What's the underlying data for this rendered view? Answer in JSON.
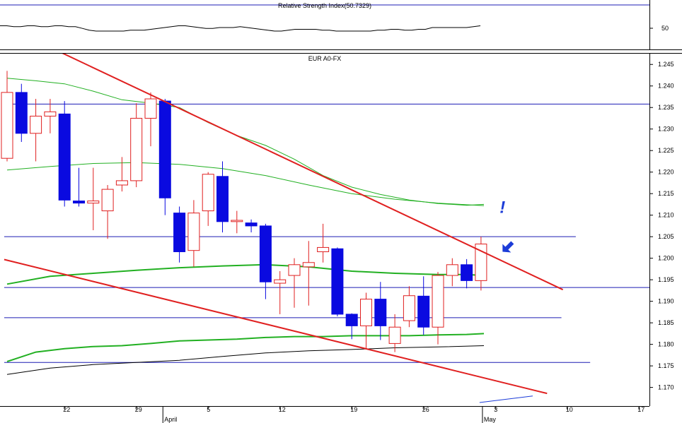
{
  "rsi_panel": {
    "title": "Relative Strength Index(50.7329)",
    "value": 50.7329,
    "ylim": [
      25,
      75
    ],
    "yticks": [
      "50"
    ],
    "line_color": "#000000",
    "values": [
      52,
      52,
      51,
      51,
      52,
      52,
      51,
      51,
      52,
      52,
      51,
      51,
      49,
      47,
      46,
      46,
      46,
      46,
      46,
      47,
      47,
      47,
      48,
      49,
      50,
      51,
      52,
      52,
      51,
      50,
      49,
      49,
      50,
      50,
      50,
      51,
      50,
      49,
      48,
      47,
      46,
      46,
      47,
      48,
      48,
      48,
      48,
      47,
      47,
      46,
      46,
      46,
      46,
      46,
      46,
      47,
      47,
      48,
      48,
      47,
      47,
      48,
      48,
      50,
      50,
      50,
      50,
      50,
      50,
      51,
      52
    ]
  },
  "chart_data": {
    "type": "candlestick",
    "title": "EUR A0-FX",
    "ylim": [
      1.166,
      1.2475
    ],
    "yticks": [
      "1.170",
      "1.175",
      "1.180",
      "1.185",
      "1.190",
      "1.195",
      "1.200",
      "1.205",
      "1.210",
      "1.215",
      "1.220",
      "1.225",
      "1.230",
      "1.235",
      "1.240",
      "1.245"
    ],
    "xticks": [
      {
        "label": "22",
        "x": 4
      },
      {
        "label": "29",
        "x": 9
      },
      {
        "label": "5",
        "x": 14
      },
      {
        "label": "12",
        "x": 19
      },
      {
        "label": "19",
        "x": 24
      },
      {
        "label": "26",
        "x": 29
      },
      {
        "label": "3",
        "x": 34
      },
      {
        "label": "10",
        "x": 39
      },
      {
        "label": "17",
        "x": 44
      }
    ],
    "month_labels": [
      {
        "label": "April",
        "x": 10.85
      },
      {
        "label": "May",
        "x": 33.1
      }
    ],
    "colors": {
      "up": "#e02020",
      "down": "#0a0ae0",
      "trend": "#e02020",
      "ma": "#22b022",
      "ma_long": "#000000",
      "hline": "#1c1cb4",
      "annotation": "#1c3cd8"
    },
    "candles": [
      {
        "o": 1.2232,
        "h": 1.2435,
        "l": 1.2225,
        "c": 1.2385
      },
      {
        "o": 1.2385,
        "h": 1.2405,
        "l": 1.227,
        "c": 1.229
      },
      {
        "o": 1.229,
        "h": 1.237,
        "l": 1.2225,
        "c": 1.233
      },
      {
        "o": 1.233,
        "h": 1.237,
        "l": 1.229,
        "c": 1.234
      },
      {
        "o": 1.2335,
        "h": 1.2365,
        "l": 1.212,
        "c": 1.2135
      },
      {
        "o": 1.2133,
        "h": 1.221,
        "l": 1.212,
        "c": 1.2128
      },
      {
        "o": 1.2128,
        "h": 1.221,
        "l": 1.2065,
        "c": 1.2133
      },
      {
        "o": 1.211,
        "h": 1.217,
        "l": 1.2045,
        "c": 1.216
      },
      {
        "o": 1.217,
        "h": 1.2235,
        "l": 1.2155,
        "c": 1.218
      },
      {
        "o": 1.218,
        "h": 1.236,
        "l": 1.2165,
        "c": 1.2325
      },
      {
        "o": 1.2325,
        "h": 1.2385,
        "l": 1.226,
        "c": 1.237
      },
      {
        "o": 1.2365,
        "h": 1.237,
        "l": 1.21,
        "c": 1.214
      },
      {
        "o": 1.2105,
        "h": 1.212,
        "l": 1.199,
        "c": 1.2015
      },
      {
        "o": 1.2018,
        "h": 1.2135,
        "l": 1.198,
        "c": 1.2105
      },
      {
        "o": 1.211,
        "h": 1.22,
        "l": 1.2075,
        "c": 1.2195
      },
      {
        "o": 1.219,
        "h": 1.2225,
        "l": 1.206,
        "c": 1.2085
      },
      {
        "o": 1.2085,
        "h": 1.211,
        "l": 1.2058,
        "c": 1.2088
      },
      {
        "o": 1.2082,
        "h": 1.209,
        "l": 1.206,
        "c": 1.2075
      },
      {
        "o": 1.2075,
        "h": 1.208,
        "l": 1.1905,
        "c": 1.1945
      },
      {
        "o": 1.1942,
        "h": 1.197,
        "l": 1.187,
        "c": 1.195
      },
      {
        "o": 1.196,
        "h": 1.2,
        "l": 1.1885,
        "c": 1.1985
      },
      {
        "o": 1.198,
        "h": 1.204,
        "l": 1.189,
        "c": 1.199
      },
      {
        "o": 1.2015,
        "h": 1.208,
        "l": 1.199,
        "c": 1.2025
      },
      {
        "o": 1.2022,
        "h": 1.2025,
        "l": 1.1865,
        "c": 1.187
      },
      {
        "o": 1.187,
        "h": 1.1872,
        "l": 1.1812,
        "c": 1.1843
      },
      {
        "o": 1.1843,
        "h": 1.192,
        "l": 1.179,
        "c": 1.1905
      },
      {
        "o": 1.1905,
        "h": 1.1945,
        "l": 1.181,
        "c": 1.1843
      },
      {
        "o": 1.1802,
        "h": 1.187,
        "l": 1.1782,
        "c": 1.184
      },
      {
        "o": 1.1855,
        "h": 1.1935,
        "l": 1.184,
        "c": 1.1913
      },
      {
        "o": 1.1912,
        "h": 1.1958,
        "l": 1.1822,
        "c": 1.184
      },
      {
        "o": 1.184,
        "h": 1.1968,
        "l": 1.18,
        "c": 1.196
      },
      {
        "o": 1.196,
        "h": 1.2,
        "l": 1.1935,
        "c": 1.1985
      },
      {
        "o": 1.1985,
        "h": 1.1998,
        "l": 1.193,
        "c": 1.1948
      },
      {
        "o": 1.1948,
        "h": 1.205,
        "l": 1.1925,
        "c": 1.2033
      }
    ],
    "ma_short": [
      [
        0,
        1.2418
      ],
      [
        2,
        1.2412
      ],
      [
        4,
        1.2405
      ],
      [
        6,
        1.2388
      ],
      [
        8,
        1.2368
      ],
      [
        10,
        1.236
      ],
      [
        12,
        1.235
      ],
      [
        14,
        1.2315
      ],
      [
        16,
        1.2285
      ],
      [
        18,
        1.2262
      ],
      [
        20,
        1.223
      ],
      [
        22,
        1.2192
      ],
      [
        24,
        1.2165
      ],
      [
        26,
        1.2148
      ],
      [
        28,
        1.2135
      ],
      [
        30,
        1.2127
      ],
      [
        32,
        1.2123
      ],
      [
        33.2,
        1.2125
      ]
    ],
    "ma_medium": [
      [
        0,
        1.2205
      ],
      [
        3,
        1.2213
      ],
      [
        6,
        1.222
      ],
      [
        9,
        1.2222
      ],
      [
        12,
        1.2218
      ],
      [
        15,
        1.2208
      ],
      [
        18,
        1.2192
      ],
      [
        21,
        1.217
      ],
      [
        24,
        1.215
      ],
      [
        27,
        1.2137
      ],
      [
        30,
        1.2128
      ],
      [
        33.2,
        1.2122
      ]
    ],
    "ma_green_lower": [
      [
        0,
        1.194
      ],
      [
        3,
        1.1958
      ],
      [
        6,
        1.1965
      ],
      [
        9,
        1.1972
      ],
      [
        12,
        1.1978
      ],
      [
        15,
        1.1982
      ],
      [
        18,
        1.1985
      ],
      [
        21,
        1.198
      ],
      [
        24,
        1.197
      ],
      [
        27,
        1.1965
      ],
      [
        30,
        1.1962
      ],
      [
        32,
        1.1962
      ],
      [
        33.2,
        1.196
      ]
    ],
    "ma_green_bottom": [
      [
        0,
        1.176
      ],
      [
        2,
        1.1782
      ],
      [
        4,
        1.179
      ],
      [
        6,
        1.1795
      ],
      [
        8,
        1.1797
      ],
      [
        10,
        1.1802
      ],
      [
        12,
        1.1808
      ],
      [
        14,
        1.181
      ],
      [
        16,
        1.1812
      ],
      [
        18,
        1.1816
      ],
      [
        20,
        1.1818
      ],
      [
        22,
        1.1818
      ],
      [
        24,
        1.182
      ],
      [
        26,
        1.182
      ],
      [
        28,
        1.182
      ],
      [
        30,
        1.1822
      ],
      [
        32,
        1.1823
      ],
      [
        33.2,
        1.1825
      ]
    ],
    "ma_long": [
      [
        0,
        1.173
      ],
      [
        3,
        1.1745
      ],
      [
        6,
        1.1753
      ],
      [
        9,
        1.1758
      ],
      [
        12,
        1.1763
      ],
      [
        15,
        1.1772
      ],
      [
        18,
        1.178
      ],
      [
        21,
        1.1785
      ],
      [
        24,
        1.1788
      ],
      [
        27,
        1.1792
      ],
      [
        30,
        1.1794
      ],
      [
        33.2,
        1.1797
      ]
    ],
    "trendlines": [
      {
        "x1": 3.3,
        "y1": 1.2485,
        "x2": 38.7,
        "y2": 1.1927
      },
      {
        "x1": -0.2,
        "y1": 1.1997,
        "x2": 37.6,
        "y2": 1.1686
      }
    ],
    "hlines": [
      {
        "y": 1.2358,
        "x1": -0.2,
        "x2": 45
      },
      {
        "y": 1.205,
        "x1": -0.2,
        "x2": 39.6
      },
      {
        "y": 1.1932,
        "x1": -0.2,
        "x2": 45
      },
      {
        "y": 1.1862,
        "x1": -0.2,
        "x2": 38.6
      },
      {
        "y": 1.1758,
        "x1": -0.2,
        "x2": 40.6
      }
    ],
    "blue_segment": {
      "x1": 32.9,
      "y1": 1.1665,
      "x2": 36.6,
      "y2": 1.168
    },
    "annotations": {
      "exclamation": "!",
      "exclamation_at": [
        34.3,
        1.2105
      ],
      "arrow_at": [
        34.5,
        1.2015
      ]
    }
  }
}
